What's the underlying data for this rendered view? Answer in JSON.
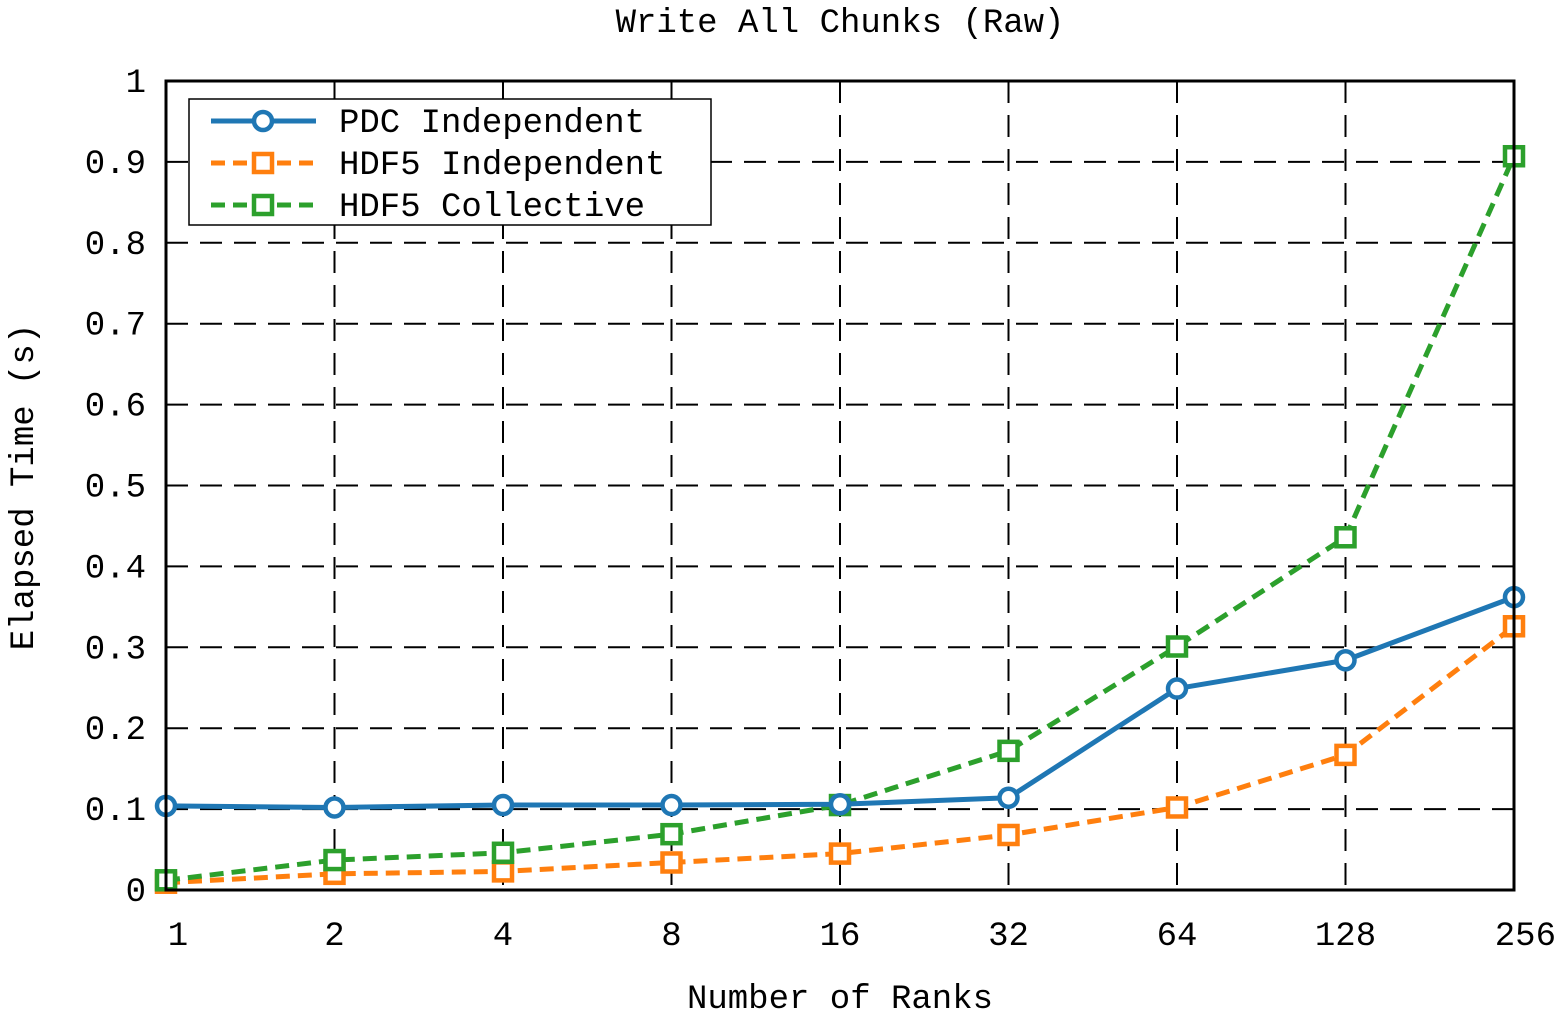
{
  "chart_data": {
    "type": "line",
    "title": "Write All Chunks (Raw)",
    "xlabel": "Number of Ranks",
    "ylabel": "Elapsed Time (s)",
    "categories": [
      "1",
      "2",
      "4",
      "8",
      "16",
      "32",
      "64",
      "128",
      "256"
    ],
    "y_ticks": [
      "0",
      "0.1",
      "0.2",
      "0.3",
      "0.4",
      "0.5",
      "0.6",
      "0.7",
      "0.8",
      "0.9",
      "1"
    ],
    "ylim": [
      0,
      1
    ],
    "x_scale": "log2",
    "grid": true,
    "legend_position": "top-left",
    "series": [
      {
        "name": "PDC Independent",
        "color": "#1f77b4",
        "dash": "solid",
        "marker": "circle",
        "values": [
          0.104,
          0.102,
          0.105,
          0.105,
          0.106,
          0.114,
          0.249,
          0.284,
          0.362
        ]
      },
      {
        "name": "HDF5 Independent",
        "color": "#ff7f0e",
        "dash": "dashed",
        "marker": "square",
        "values": [
          0.009,
          0.02,
          0.023,
          0.034,
          0.045,
          0.068,
          0.102,
          0.167,
          0.326
        ]
      },
      {
        "name": "HDF5 Collective",
        "color": "#2ca02c",
        "dash": "dashed",
        "marker": "square",
        "values": [
          0.012,
          0.037,
          0.046,
          0.069,
          0.105,
          0.172,
          0.301,
          0.436,
          0.907
        ]
      }
    ]
  }
}
